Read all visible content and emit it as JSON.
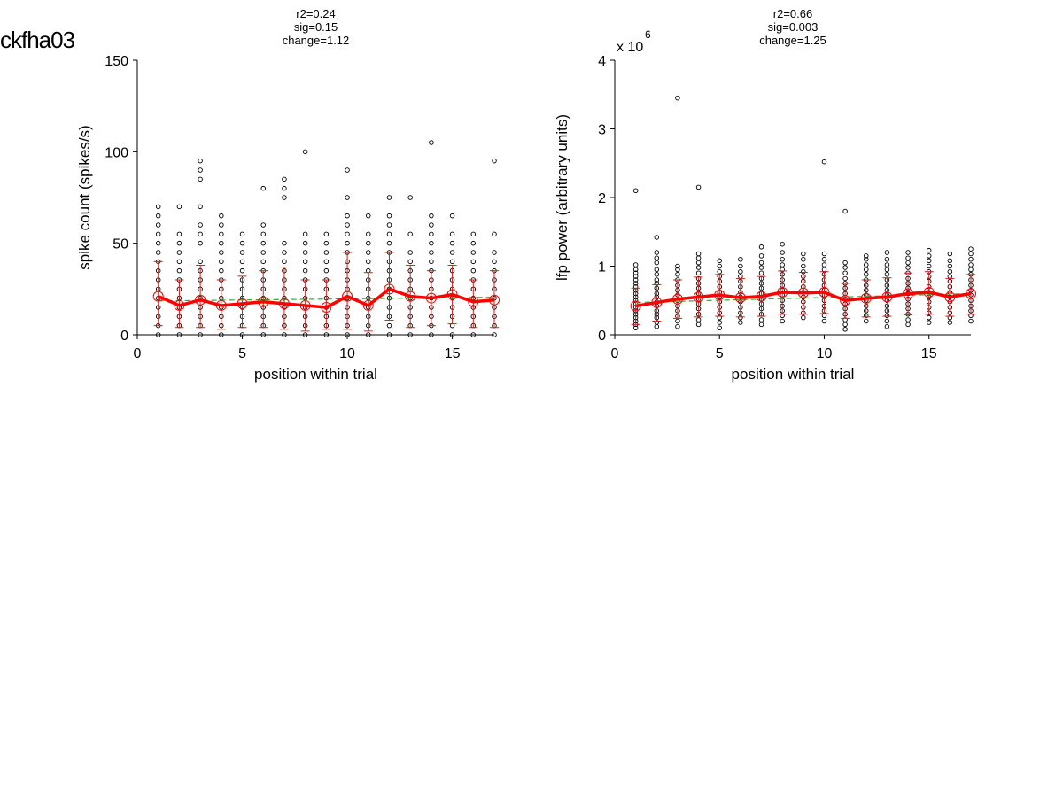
{
  "figure": {
    "title": "ckfha03"
  },
  "chart_data": [
    {
      "type": "scatter",
      "stats": [
        "r2=0.24",
        "sig=0.15",
        "change=1.12"
      ],
      "xlabel": "position within trial",
      "ylabel": "spike count (spikes/s)",
      "xlim": [
        0,
        17
      ],
      "ylim": [
        0,
        150
      ],
      "xticks": [
        0,
        5,
        10,
        15
      ],
      "yticks": [
        0,
        50,
        100,
        150
      ],
      "exponent_label": "",
      "colors": {
        "points": "#000000",
        "mean_line": "#ff0000",
        "error_bars": "#cc2222",
        "fit_line": "#33aa33"
      },
      "mean": [
        21,
        16,
        19,
        16,
        17,
        18,
        17,
        16,
        15,
        21,
        16,
        25,
        21,
        20,
        22,
        18,
        19
      ],
      "err_upper": [
        40,
        30,
        38,
        30,
        32,
        35,
        37,
        30,
        30,
        45,
        34,
        45,
        38,
        35,
        38,
        30,
        35
      ],
      "err_lower": [
        5,
        4,
        4,
        3,
        4,
        4,
        3,
        2,
        3,
        3,
        2,
        8,
        4,
        5,
        6,
        4,
        4
      ],
      "fit": [
        18.5,
        20.5
      ],
      "points": [
        [
          0,
          5,
          10,
          15,
          20,
          25,
          30,
          35,
          40,
          45,
          50,
          55,
          60,
          65,
          70
        ],
        [
          0,
          5,
          10,
          15,
          20,
          25,
          30,
          35,
          40,
          45,
          50,
          55,
          70
        ],
        [
          0,
          5,
          10,
          15,
          20,
          25,
          30,
          35,
          40,
          50,
          55,
          60,
          70,
          85,
          90,
          95
        ],
        [
          0,
          5,
          10,
          15,
          20,
          25,
          30,
          35,
          40,
          45,
          50,
          55,
          60,
          65
        ],
        [
          0,
          5,
          10,
          15,
          20,
          25,
          30,
          35,
          40,
          45,
          50,
          55
        ],
        [
          0,
          5,
          10,
          15,
          20,
          25,
          30,
          35,
          40,
          45,
          50,
          55,
          60,
          80
        ],
        [
          0,
          5,
          10,
          15,
          20,
          25,
          30,
          35,
          40,
          45,
          50,
          75,
          80,
          85
        ],
        [
          0,
          5,
          10,
          15,
          20,
          25,
          30,
          35,
          40,
          45,
          50,
          55,
          100
        ],
        [
          0,
          5,
          10,
          15,
          20,
          25,
          30,
          35,
          40,
          45,
          50,
          55
        ],
        [
          0,
          5,
          10,
          15,
          20,
          25,
          30,
          35,
          40,
          45,
          50,
          55,
          60,
          65,
          75,
          90
        ],
        [
          0,
          5,
          10,
          15,
          20,
          25,
          30,
          35,
          40,
          45,
          50,
          55,
          65
        ],
        [
          0,
          5,
          10,
          15,
          20,
          25,
          30,
          35,
          40,
          45,
          50,
          55,
          60,
          65,
          75
        ],
        [
          0,
          5,
          10,
          15,
          20,
          25,
          30,
          35,
          40,
          45,
          55,
          75
        ],
        [
          0,
          5,
          10,
          15,
          20,
          25,
          30,
          35,
          40,
          45,
          50,
          55,
          60,
          65,
          105
        ],
        [
          0,
          5,
          10,
          15,
          20,
          25,
          30,
          35,
          40,
          45,
          50,
          55,
          65
        ],
        [
          0,
          5,
          10,
          15,
          20,
          25,
          30,
          35,
          40,
          45,
          50,
          55
        ],
        [
          0,
          5,
          10,
          15,
          20,
          25,
          30,
          35,
          40,
          45,
          55,
          95
        ]
      ]
    },
    {
      "type": "scatter",
      "stats": [
        "r2=0.66",
        "sig=0.003",
        "change=1.25"
      ],
      "xlabel": "position within trial",
      "ylabel": "lfp power (arbitrary units)",
      "xlim": [
        0,
        17
      ],
      "ylim": [
        0,
        4
      ],
      "xticks": [
        0,
        5,
        10,
        15
      ],
      "yticks": [
        0,
        1,
        2,
        3,
        4
      ],
      "exponent_label": "x 10",
      "exponent_power": "6",
      "colors": {
        "points": "#000000",
        "mean_line": "#ff0000",
        "error_bars": "#cc2222",
        "fit_line": "#33aa33"
      },
      "mean": [
        0.42,
        0.47,
        0.52,
        0.55,
        0.58,
        0.54,
        0.56,
        0.62,
        0.61,
        0.62,
        0.5,
        0.53,
        0.55,
        0.6,
        0.62,
        0.55,
        0.6
      ],
      "err_upper": [
        0.68,
        0.73,
        0.8,
        0.84,
        0.88,
        0.82,
        0.85,
        0.93,
        0.91,
        0.92,
        0.75,
        0.8,
        0.83,
        0.9,
        0.92,
        0.82,
        0.88
      ],
      "err_lower": [
        0.15,
        0.2,
        0.24,
        0.26,
        0.27,
        0.26,
        0.27,
        0.3,
        0.3,
        0.31,
        0.24,
        0.26,
        0.27,
        0.29,
        0.3,
        0.27,
        0.3
      ],
      "fit": [
        0.47,
        0.6
      ],
      "points": [
        [
          0.1,
          0.15,
          0.2,
          0.25,
          0.3,
          0.35,
          0.4,
          0.45,
          0.5,
          0.55,
          0.6,
          0.65,
          0.7,
          0.75,
          0.8,
          0.85,
          0.9,
          0.95,
          1.02,
          2.1
        ],
        [
          0.12,
          0.18,
          0.25,
          0.3,
          0.35,
          0.42,
          0.48,
          0.55,
          0.6,
          0.68,
          0.75,
          0.8,
          0.88,
          0.95,
          1.05,
          1.12,
          1.2,
          1.42
        ],
        [
          0.12,
          0.2,
          0.27,
          0.35,
          0.42,
          0.5,
          0.58,
          0.65,
          0.72,
          0.8,
          0.88,
          0.95,
          1.0,
          3.45
        ],
        [
          0.15,
          0.22,
          0.3,
          0.38,
          0.45,
          0.52,
          0.6,
          0.68,
          0.75,
          0.82,
          0.9,
          0.98,
          1.05,
          1.12,
          1.18,
          2.15
        ],
        [
          0.1,
          0.18,
          0.25,
          0.32,
          0.4,
          0.48,
          0.55,
          0.62,
          0.7,
          0.78,
          0.85,
          0.92,
          1.0,
          1.08
        ],
        [
          0.18,
          0.25,
          0.32,
          0.4,
          0.48,
          0.55,
          0.62,
          0.7,
          0.78,
          0.85,
          0.92,
          1.0,
          1.1
        ],
        [
          0.15,
          0.22,
          0.3,
          0.38,
          0.45,
          0.52,
          0.6,
          0.68,
          0.75,
          0.82,
          0.9,
          0.98,
          1.05,
          1.15,
          1.28
        ],
        [
          0.2,
          0.28,
          0.35,
          0.42,
          0.5,
          0.58,
          0.65,
          0.72,
          0.8,
          0.88,
          0.95,
          1.02,
          1.1,
          1.2,
          1.32
        ],
        [
          0.25,
          0.32,
          0.4,
          0.48,
          0.55,
          0.62,
          0.7,
          0.78,
          0.85,
          0.92,
          1.0,
          1.1,
          1.18
        ],
        [
          0.2,
          0.28,
          0.35,
          0.42,
          0.5,
          0.58,
          0.65,
          0.72,
          0.8,
          0.88,
          0.95,
          1.02,
          1.1,
          1.18,
          2.52
        ],
        [
          0.08,
          0.15,
          0.22,
          0.3,
          0.38,
          0.45,
          0.52,
          0.6,
          0.68,
          0.75,
          0.82,
          0.9,
          0.98,
          1.05,
          1.8
        ],
        [
          0.2,
          0.28,
          0.35,
          0.42,
          0.5,
          0.58,
          0.65,
          0.72,
          0.8,
          0.88,
          0.95,
          1.02,
          1.1,
          1.15
        ],
        [
          0.12,
          0.2,
          0.28,
          0.35,
          0.42,
          0.5,
          0.58,
          0.65,
          0.72,
          0.8,
          0.88,
          0.95,
          1.02,
          1.1,
          1.2
        ],
        [
          0.15,
          0.22,
          0.3,
          0.38,
          0.45,
          0.52,
          0.6,
          0.68,
          0.75,
          0.82,
          0.9,
          0.98,
          1.05,
          1.12,
          1.2
        ],
        [
          0.18,
          0.25,
          0.32,
          0.4,
          0.48,
          0.55,
          0.62,
          0.7,
          0.78,
          0.85,
          0.92,
          1.0,
          1.08,
          1.15,
          1.23
        ],
        [
          0.18,
          0.25,
          0.32,
          0.4,
          0.48,
          0.55,
          0.62,
          0.7,
          0.78,
          0.85,
          0.92,
          1.0,
          1.08,
          1.18
        ],
        [
          0.2,
          0.28,
          0.35,
          0.42,
          0.5,
          0.58,
          0.65,
          0.72,
          0.8,
          0.88,
          0.95,
          1.02,
          1.1,
          1.18,
          1.25
        ]
      ]
    }
  ]
}
